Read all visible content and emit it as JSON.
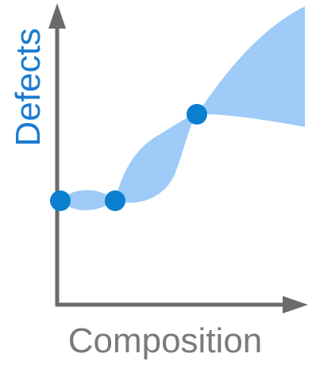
{
  "labels": {
    "y_axis": "Defects",
    "x_axis": "Composition"
  },
  "colors": {
    "axis": "#6b6b6b",
    "band_fill": "#9ecbf7",
    "point_fill": "#0a7fd0",
    "y_label": "#1a7bd0",
    "x_label": "#7a7a7a"
  },
  "points_count": 3
}
